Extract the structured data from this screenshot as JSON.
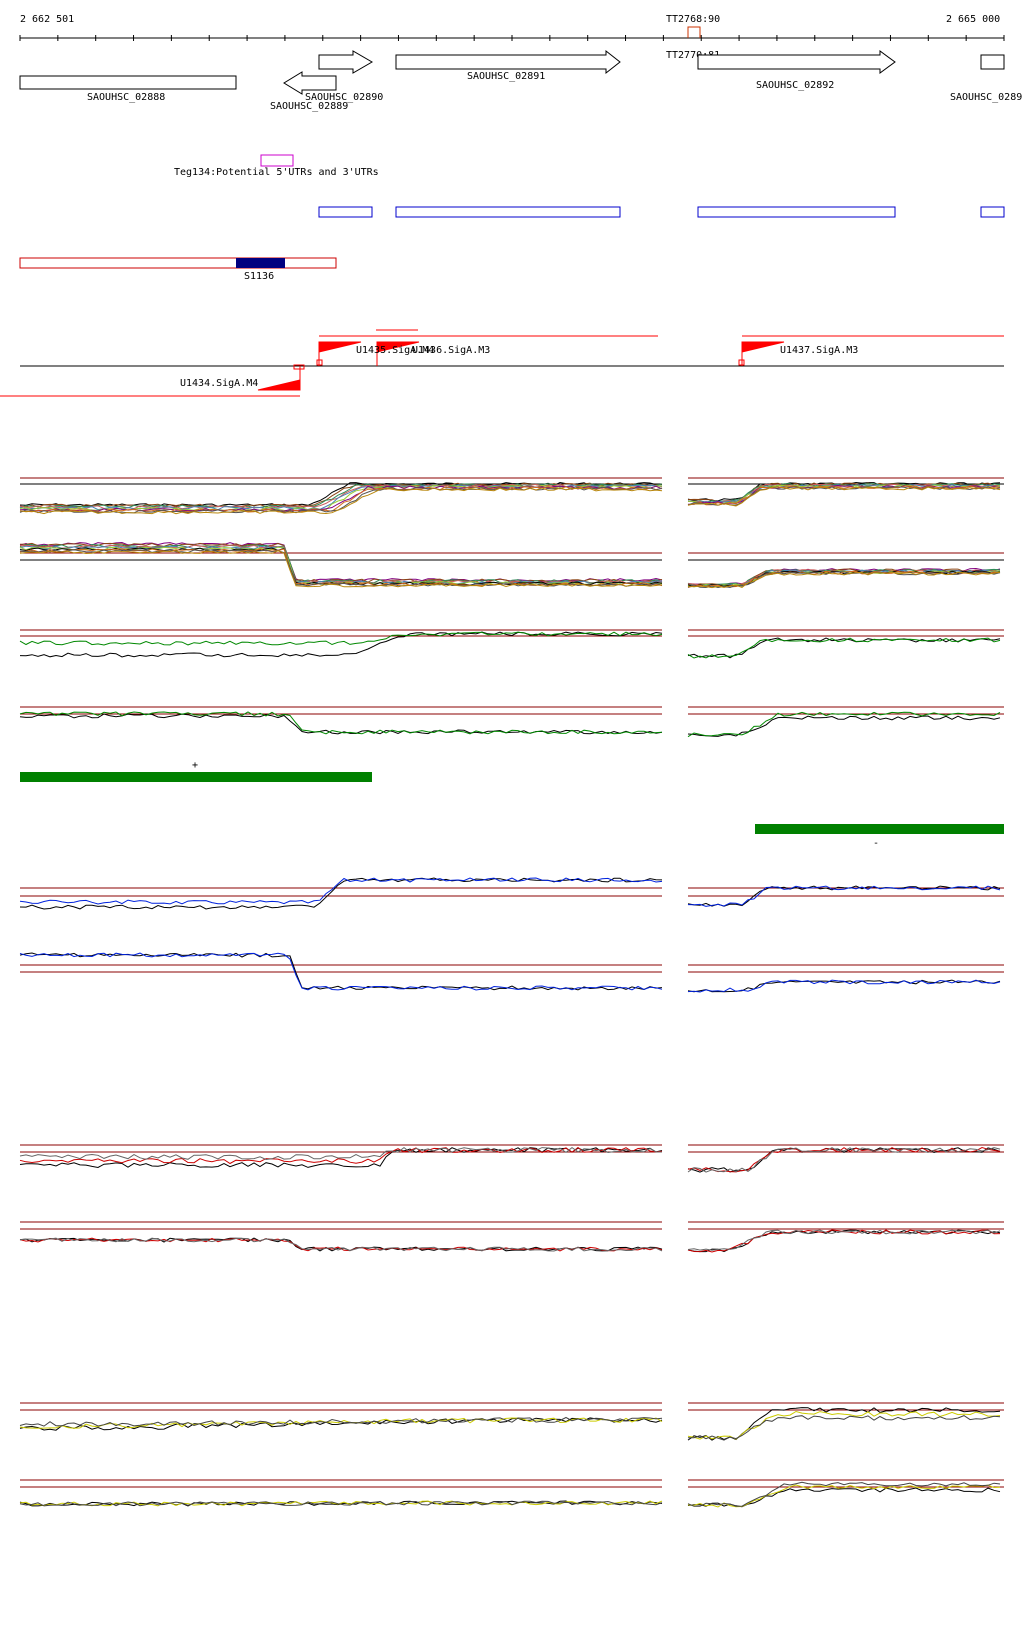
{
  "coords": {
    "start": "2 662 501",
    "end": "2 665 000"
  },
  "terminators": [
    {
      "label": "TT2768:90"
    },
    {
      "label": "TT2770:81"
    }
  ],
  "genes": [
    {
      "label": "SAOUHSC_02888",
      "strand": "none"
    },
    {
      "label": "SAOUHSC_02889",
      "strand": "minus"
    },
    {
      "label": "SAOUHSC_02890",
      "strand": "plus"
    },
    {
      "label": "SAOUHSC_02891",
      "strand": "plus"
    },
    {
      "label": "SAOUHSC_02892",
      "strand": "plus"
    },
    {
      "label": "SAOUHSC_0289",
      "strand": "plus"
    }
  ],
  "utr_feature": {
    "label": "Teg134:Potential 5'UTRs and 3'UTRs"
  },
  "srna_feature": {
    "label": "S1136"
  },
  "promoters": [
    {
      "label": "U1434.SigA.M4"
    },
    {
      "label": "U1435.SigA.M4"
    },
    {
      "label": "U1436.SigA.M3"
    },
    {
      "label": "U1437.SigA.M3"
    }
  ],
  "segment_marks": [
    {
      "label": "+"
    },
    {
      "label": "-"
    }
  ],
  "colors": {
    "gene_outline": "#000000",
    "cds_box": "#0000cc",
    "srna_box": "#cc0000",
    "srna_core": "#000080",
    "utr_box": "#cc00cc",
    "promoter": "#ff0000",
    "segment": "#008000",
    "threshold": "#8b0000",
    "blue_track": "#0022dd",
    "red_track": "#cc0000",
    "yellow_track": "#cccc00",
    "green_track": "#008800"
  }
}
